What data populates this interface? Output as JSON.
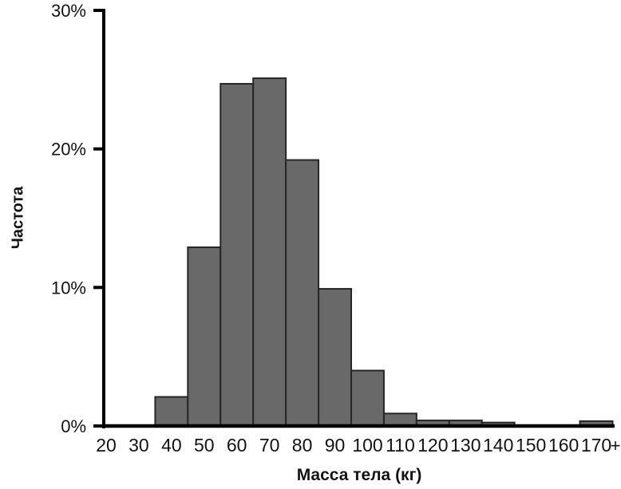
{
  "chart_data": {
    "type": "bar",
    "subtype": "histogram",
    "title": "",
    "xlabel": "Масса тела (кг)",
    "ylabel": "Частота",
    "categories": [
      40,
      50,
      60,
      70,
      80,
      90,
      100,
      110,
      120,
      130,
      140,
      150,
      160,
      170
    ],
    "values": [
      2.1,
      12.9,
      24.7,
      25.1,
      19.2,
      9.9,
      4.0,
      0.9,
      0.4,
      0.4,
      0.25,
      0,
      0,
      0.35
    ],
    "bin_width_kg": 10,
    "x_tick_values": [
      20,
      30,
      40,
      50,
      60,
      70,
      80,
      90,
      100,
      110,
      120,
      130,
      140,
      150,
      160,
      170
    ],
    "x_tick_labels": [
      "20",
      "30",
      "40",
      "50",
      "60",
      "70",
      "80",
      "90",
      "100",
      "110",
      "120",
      "130",
      "140",
      "150",
      "160",
      "170"
    ],
    "x_overflow_label": "+",
    "y_ticks": [
      0,
      10,
      20,
      30
    ],
    "y_tick_labels": [
      "0%",
      "10%",
      "20%",
      "30%"
    ],
    "ylim": [
      0,
      30
    ],
    "xlim": [
      20,
      176
    ],
    "grid": "off",
    "legend": "none",
    "colors": {
      "bar_fill": "#696969",
      "bar_stroke": "#262626",
      "axis": "#000000",
      "label": "#131313"
    }
  }
}
